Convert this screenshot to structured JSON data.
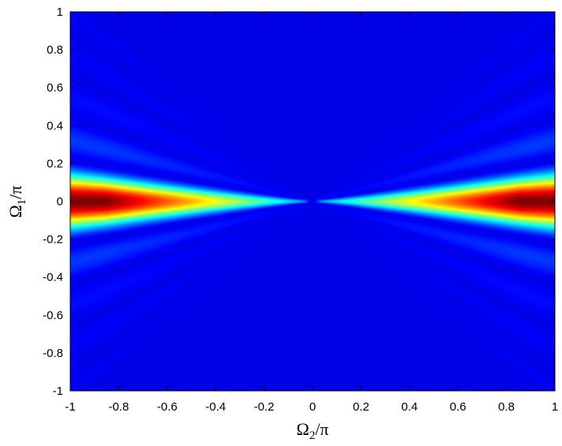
{
  "chart_data": {
    "type": "heatmap",
    "title": "",
    "xlabel": {
      "main": "Ω",
      "sub": "2",
      "suffix": "/π"
    },
    "ylabel": {
      "main": "Ω",
      "sub": "1",
      "suffix": "/π"
    },
    "xlim": [
      -1,
      1
    ],
    "ylim": [
      -1,
      1
    ],
    "x_ticks": [
      "-1",
      "-0.8",
      "-0.6",
      "-0.4",
      "-0.2",
      "0",
      "0.2",
      "0.4",
      "0.6",
      "0.8",
      "1"
    ],
    "y_ticks": [
      "1",
      "0.8",
      "0.6",
      "0.4",
      "0.2",
      "0",
      "-0.2",
      "-0.4",
      "-0.6",
      "-0.8",
      "-1"
    ],
    "colormap": "jet",
    "grid": false,
    "description_of_pattern": "",
    "colors": {
      "background": "#00008f",
      "peak": "#800000"
    }
  }
}
